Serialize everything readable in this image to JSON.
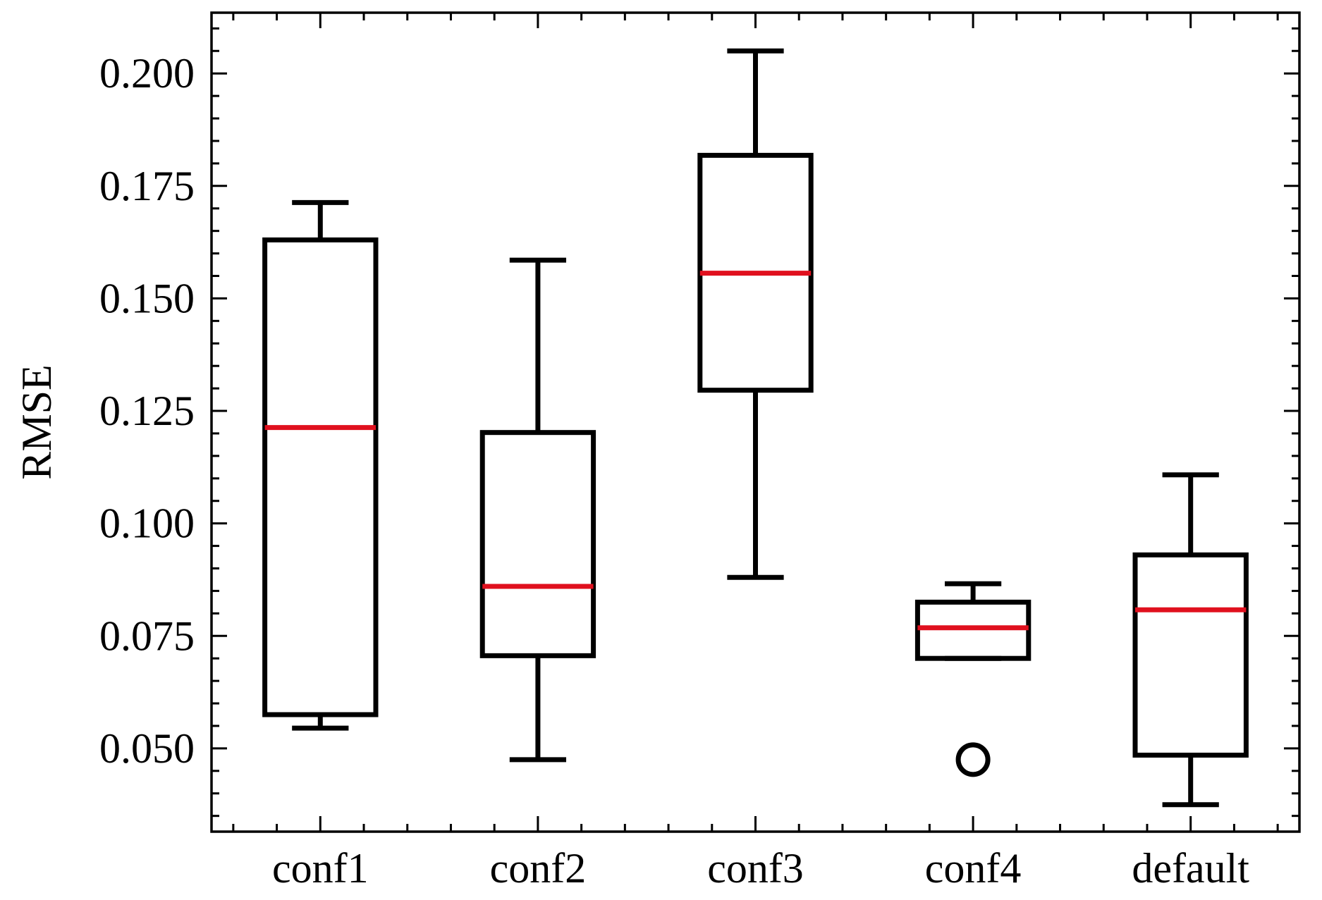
{
  "chart_data": {
    "type": "box",
    "ylabel": "RMSE",
    "xlabel": "",
    "ylim": [
      0.0315,
      0.2135
    ],
    "yticks": [
      "0.050",
      "0.075",
      "0.100",
      "0.125",
      "0.150",
      "0.175",
      "0.200"
    ],
    "ytick_values": [
      0.05,
      0.075,
      0.1,
      0.125,
      0.15,
      0.175,
      0.2
    ],
    "categories": [
      "conf1",
      "conf2",
      "conf3",
      "conf4",
      "default"
    ],
    "boxes": [
      {
        "whisker_low": 0.0545,
        "q1": 0.0575,
        "median": 0.1213,
        "q3": 0.163,
        "whisker_high": 0.1713,
        "outliers": []
      },
      {
        "whisker_low": 0.0475,
        "q1": 0.0706,
        "median": 0.086,
        "q3": 0.1202,
        "whisker_high": 0.1585,
        "outliers": []
      },
      {
        "whisker_low": 0.088,
        "q1": 0.1296,
        "median": 0.1556,
        "q3": 0.1818,
        "whisker_high": 0.205,
        "outliers": []
      },
      {
        "whisker_low": 0.07,
        "q1": 0.07,
        "median": 0.0768,
        "q3": 0.0825,
        "whisker_high": 0.0866,
        "outliers": [
          0.0475
        ]
      },
      {
        "whisker_low": 0.0375,
        "q1": 0.0485,
        "median": 0.0808,
        "q3": 0.093,
        "whisker_high": 0.1108,
        "outliers": []
      }
    ],
    "colors": {
      "box": "#000000",
      "median": "#e0101e"
    },
    "grid": false,
    "ticks": "inward-all-sides"
  }
}
